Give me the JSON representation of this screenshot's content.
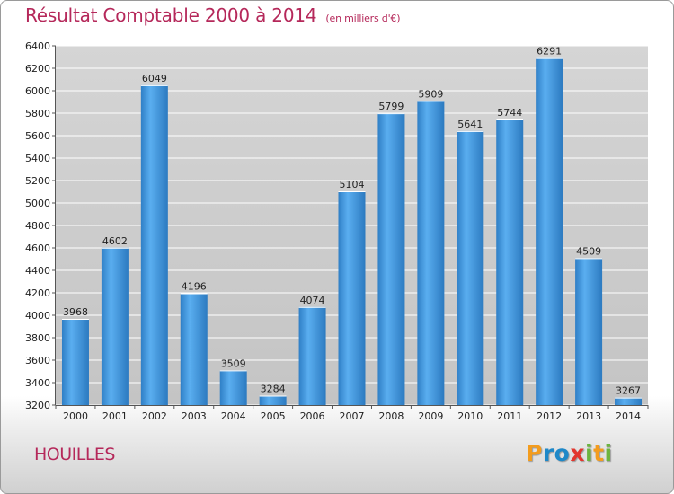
{
  "chart_data": {
    "type": "bar",
    "title": "Résultat Comptable 2000 à 2014",
    "subtitle": "(en milliers d'€)",
    "categories": [
      "2000",
      "2001",
      "2002",
      "2003",
      "2004",
      "2005",
      "2006",
      "2007",
      "2008",
      "2009",
      "2010",
      "2011",
      "2012",
      "2013",
      "2014"
    ],
    "values": [
      3968,
      4602,
      6049,
      4196,
      3509,
      3284,
      4074,
      5104,
      5799,
      5909,
      5641,
      5744,
      6291,
      4509,
      3267
    ],
    "ylim": [
      3200,
      6400
    ],
    "yticks": [
      3200,
      3400,
      3600,
      3800,
      4000,
      4200,
      4400,
      4600,
      4800,
      5000,
      5200,
      5400,
      5600,
      5800,
      6000,
      6200,
      6400
    ],
    "grid": true,
    "legend": "none",
    "bar_color": "#3a8fd8"
  },
  "location": "HOUILLES",
  "logo": {
    "letters": [
      "P",
      "r",
      "o",
      "x",
      "i",
      "t",
      "i"
    ],
    "colors": [
      "#f39c1e",
      "#1e88c8",
      "#1e88c8",
      "#e2362e",
      "#6cb43f",
      "#f39c1e",
      "#6cb43f"
    ]
  }
}
